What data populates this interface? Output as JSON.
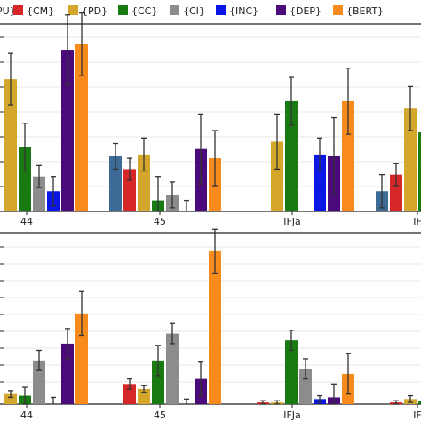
{
  "colors": {
    "text": "#222222",
    "grid": "#d0d0d0",
    "errorbar": "#333333"
  },
  "legend": {
    "placement": "top",
    "entries": [
      {
        "label": "{PU}",
        "color": "#3d6b96",
        "partial_text": "PU}"
      },
      {
        "label": "{CM}",
        "color": "#d62728"
      },
      {
        "label": "{PD}",
        "color": "#d4a72c"
      },
      {
        "label": "{CC}",
        "color": "#1a7a12"
      },
      {
        "label": "{CI}",
        "color": "#8c8c8c"
      },
      {
        "label": "{INC}",
        "color": "#0a16e6"
      },
      {
        "label": "{DEP}",
        "color": "#4b0a7a"
      },
      {
        "label": "{BERT}",
        "color": "#f98a1c"
      }
    ]
  },
  "chart_data": [
    {
      "type": "bar",
      "panel": "top",
      "categories": [
        "44",
        "45",
        "IFJa",
        "IF"
      ],
      "ylim": [
        0,
        10
      ],
      "grid": true,
      "series": [
        {
          "name": "{PU}",
          "values": [
            null,
            3.0,
            0,
            1.1
          ],
          "err": [
            0,
            0.7,
            0,
            0.9
          ]
        },
        {
          "name": "{CM}",
          "values": [
            null,
            2.3,
            0,
            2.0
          ],
          "err": [
            0,
            0.6,
            0,
            0.6
          ]
        },
        {
          "name": "{PD}",
          "values": [
            7.2,
            3.1,
            3.8,
            5.6
          ],
          "err": [
            1.4,
            0.9,
            1.5,
            1.2
          ]
        },
        {
          "name": "{CC}",
          "values": [
            3.5,
            0.6,
            6.0,
            4.3
          ],
          "err": [
            1.3,
            1.3,
            1.3,
            1.3
          ]
        },
        {
          "name": "{CI}",
          "values": [
            1.9,
            0.9,
            0,
            0
          ],
          "err": [
            0.6,
            0.7,
            0,
            0
          ]
        },
        {
          "name": "{INC}",
          "values": [
            1.1,
            0,
            3.1,
            0
          ],
          "err": [
            0.8,
            0.6,
            0.9,
            0
          ]
        },
        {
          "name": "{DEP}",
          "values": [
            8.8,
            3.4,
            3.0,
            0
          ],
          "err": [
            1.9,
            1.9,
            2.1,
            0
          ]
        },
        {
          "name": "{BERT}",
          "values": [
            9.1,
            2.9,
            6.0,
            0
          ],
          "err": [
            1.7,
            1.5,
            1.8,
            0
          ]
        }
      ],
      "tick_labels": [
        "44",
        "45",
        "IFJa",
        "IF"
      ]
    },
    {
      "type": "bar",
      "panel": "bottom",
      "categories": [
        "44",
        "45",
        "IFJa",
        "IF"
      ],
      "ylim": [
        0,
        10
      ],
      "grid": true,
      "series": [
        {
          "name": "{PU}",
          "values": [
            0,
            0,
            0,
            0
          ],
          "err": [
            0,
            0,
            0,
            0
          ]
        },
        {
          "name": "{CM}",
          "values": [
            0,
            1.2,
            0.1,
            0.1
          ],
          "err": [
            0,
            0.3,
            0.1,
            0.1
          ]
        },
        {
          "name": "{PD}",
          "values": [
            0.6,
            0.9,
            0.1,
            0.3
          ],
          "err": [
            0.2,
            0.2,
            0.1,
            0.2
          ]
        },
        {
          "name": "{CC}",
          "values": [
            0.5,
            2.6,
            3.8,
            0.2
          ],
          "err": [
            0.5,
            0.9,
            0.6,
            0.2
          ]
        },
        {
          "name": "{CI}",
          "values": [
            2.6,
            4.2,
            2.1,
            0
          ],
          "err": [
            0.6,
            0.6,
            0.6,
            0
          ]
        },
        {
          "name": "{INC}",
          "values": [
            0,
            0,
            0.3,
            0
          ],
          "err": [
            0.4,
            0.3,
            0.2,
            0
          ]
        },
        {
          "name": "{DEP}",
          "values": [
            3.6,
            1.5,
            0.4,
            0
          ],
          "err": [
            0.9,
            1.0,
            0.8,
            0
          ]
        },
        {
          "name": "{BERT}",
          "values": [
            5.4,
            9.1,
            1.8,
            0
          ],
          "err": [
            1.3,
            1.3,
            1.2,
            0
          ]
        }
      ],
      "tick_labels": [
        "44",
        "45",
        "IFJa",
        "IF"
      ]
    }
  ]
}
